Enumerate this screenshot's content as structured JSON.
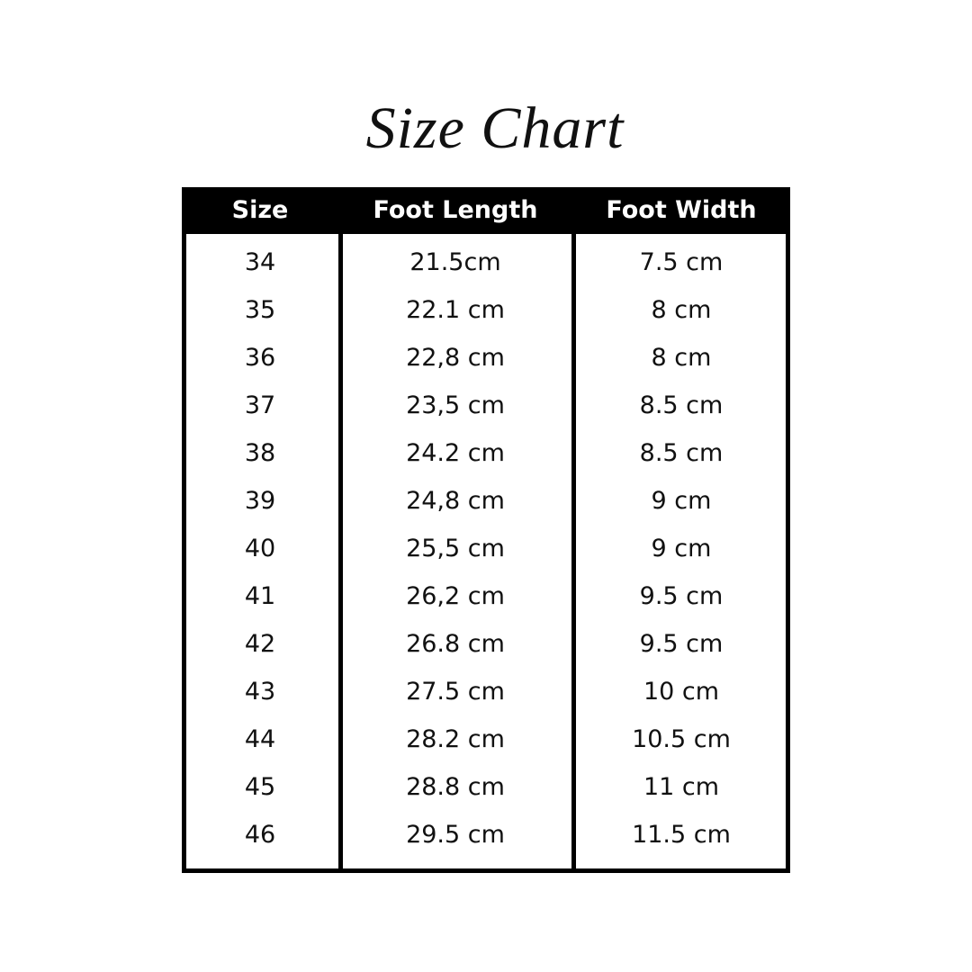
{
  "title": "Size Chart",
  "chart_data": {
    "type": "table",
    "title": "Size Chart",
    "columns": [
      "Size",
      "Foot Length",
      "Foot Width"
    ],
    "rows": [
      [
        "34",
        "21.5cm",
        "7.5 cm"
      ],
      [
        "35",
        "22.1 cm",
        "8 cm"
      ],
      [
        "36",
        "22,8 cm",
        "8 cm"
      ],
      [
        "37",
        "23,5 cm",
        "8.5 cm"
      ],
      [
        "38",
        "24.2 cm",
        "8.5 cm"
      ],
      [
        "39",
        "24,8 cm",
        "9 cm"
      ],
      [
        "40",
        "25,5 cm",
        "9 cm"
      ],
      [
        "41",
        "26,2 cm",
        "9.5 cm"
      ],
      [
        "42",
        "26.8 cm",
        "9.5 cm"
      ],
      [
        "43",
        "27.5 cm",
        "10 cm"
      ],
      [
        "44",
        "28.2 cm",
        "10.5 cm"
      ],
      [
        "45",
        "28.8 cm",
        "11 cm"
      ],
      [
        "46",
        "29.5 cm",
        "11.5 cm"
      ]
    ]
  },
  "colors": {
    "header_bg": "#000000",
    "header_text": "#ffffff",
    "text": "#111111",
    "background": "#ffffff"
  }
}
